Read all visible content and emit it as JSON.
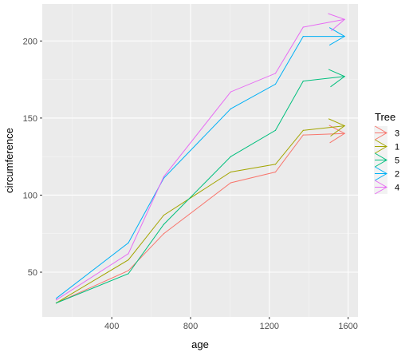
{
  "chart_data": {
    "type": "line",
    "xlabel": "age",
    "ylabel": "circumference",
    "xlim": [
      47,
      1650
    ],
    "ylim": [
      21,
      224
    ],
    "x_ticks": [
      400,
      800,
      1200,
      1600
    ],
    "x_minor_ticks": [
      200,
      600,
      1000,
      1400
    ],
    "y_ticks": [
      50,
      100,
      150,
      200
    ],
    "y_minor_ticks": [
      75,
      125,
      175
    ],
    "x_tick_labels": [
      "400",
      "800",
      "1200",
      "1600"
    ],
    "y_tick_labels": [
      "50",
      "100",
      "150",
      "200"
    ],
    "grid": true,
    "panel_background": "#ebebeb",
    "arrows_at_line_end": true,
    "legend": {
      "title": "Tree",
      "position": "right",
      "order": [
        "3",
        "1",
        "5",
        "2",
        "4"
      ]
    },
    "x": [
      118,
      484,
      664,
      1004,
      1231,
      1372,
      1582
    ],
    "series": [
      {
        "name": "3",
        "color": "#F8766D",
        "values": [
          30,
          51,
          75,
          108,
          115,
          139,
          140
        ]
      },
      {
        "name": "1",
        "color": "#A3A500",
        "values": [
          30,
          58,
          87,
          115,
          120,
          142,
          145
        ]
      },
      {
        "name": "5",
        "color": "#00BF7D",
        "values": [
          30,
          49,
          81,
          125,
          142,
          174,
          177
        ]
      },
      {
        "name": "2",
        "color": "#00B0F6",
        "values": [
          33,
          69,
          111,
          156,
          172,
          203,
          203
        ]
      },
      {
        "name": "4",
        "color": "#E76BF3",
        "values": [
          32,
          62,
          112,
          167,
          179,
          209,
          214
        ]
      }
    ]
  }
}
